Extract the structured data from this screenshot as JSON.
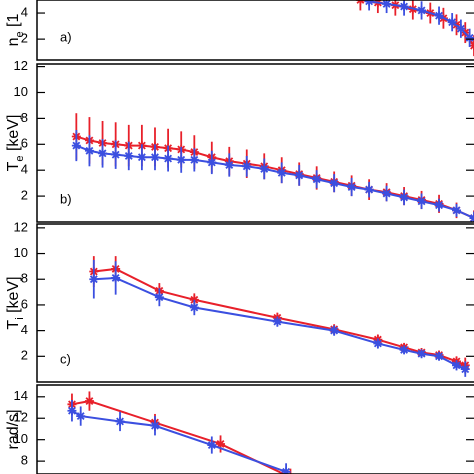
{
  "chart_data": [
    {
      "type": "errorbar",
      "panel_label": "a)",
      "ylabel": [
        "n",
        "e",
        " [1"
      ],
      "xlim": [
        0,
        1
      ],
      "ylim": [
        0.4,
        5
      ],
      "yticks": [
        2,
        4
      ],
      "series": [
        {
          "name": "red",
          "color": "#e8202a",
          "x": [
            0.74,
            0.78,
            0.82,
            0.86,
            0.9,
            0.93,
            0.96,
            0.98,
            1.0
          ],
          "values": [
            5.0,
            4.8,
            4.6,
            4.3,
            4.0,
            3.6,
            3.1,
            2.5,
            1.5
          ],
          "errors": [
            0.8,
            0.8,
            0.8,
            0.8,
            0.8,
            0.8,
            0.8,
            0.8,
            0.8
          ]
        },
        {
          "name": "blue",
          "color": "#3b4fe0",
          "x": [
            0.76,
            0.8,
            0.84,
            0.88,
            0.92,
            0.95,
            0.97,
            0.99
          ],
          "values": [
            4.9,
            4.7,
            4.5,
            4.2,
            3.8,
            3.3,
            2.8,
            2.1
          ],
          "errors": [
            0.7,
            0.7,
            0.7,
            0.7,
            0.7,
            0.7,
            0.7,
            0.7
          ]
        }
      ]
    },
    {
      "type": "errorbar",
      "panel_label": "b)",
      "ylabel": [
        "T",
        "e",
        " [keV]"
      ],
      "xlim": [
        0,
        1
      ],
      "ylim": [
        0,
        12.2
      ],
      "yticks": [
        2,
        4,
        6,
        8,
        10,
        12
      ],
      "series": [
        {
          "name": "red",
          "color": "#e8202a",
          "x": [
            0.09,
            0.12,
            0.15,
            0.18,
            0.21,
            0.24,
            0.27,
            0.3,
            0.33,
            0.36,
            0.4,
            0.44,
            0.48,
            0.52,
            0.56,
            0.6,
            0.64,
            0.68,
            0.72,
            0.76,
            0.8,
            0.84,
            0.88,
            0.92,
            0.96,
            1.0
          ],
          "values": [
            6.6,
            6.3,
            6.1,
            6.0,
            5.9,
            5.9,
            5.8,
            5.7,
            5.6,
            5.4,
            5.0,
            4.7,
            4.5,
            4.3,
            4.0,
            3.7,
            3.4,
            3.1,
            2.8,
            2.5,
            2.3,
            2.0,
            1.7,
            1.4,
            0.9,
            0.3
          ],
          "errors": [
            1.8,
            1.8,
            1.7,
            1.7,
            1.6,
            1.6,
            1.5,
            1.5,
            1.4,
            1.3,
            1.2,
            1.1,
            1.1,
            1.0,
            1.0,
            0.9,
            0.9,
            0.8,
            0.8,
            0.8,
            0.7,
            0.7,
            0.7,
            0.7,
            0.6,
            0.6
          ]
        },
        {
          "name": "blue",
          "color": "#3b4fe0",
          "x": [
            0.09,
            0.12,
            0.15,
            0.18,
            0.21,
            0.24,
            0.27,
            0.3,
            0.33,
            0.36,
            0.4,
            0.44,
            0.48,
            0.52,
            0.56,
            0.6,
            0.64,
            0.68,
            0.72,
            0.76,
            0.8,
            0.84,
            0.88,
            0.92,
            0.96,
            1.0
          ],
          "values": [
            5.9,
            5.5,
            5.3,
            5.2,
            5.1,
            5.0,
            5.0,
            4.9,
            4.8,
            4.8,
            4.6,
            4.4,
            4.3,
            4.1,
            3.8,
            3.6,
            3.3,
            3.0,
            2.7,
            2.5,
            2.2,
            1.9,
            1.6,
            1.3,
            0.9,
            0.3
          ],
          "errors": [
            1.2,
            1.2,
            1.1,
            1.1,
            1.1,
            1.0,
            1.0,
            1.0,
            1.0,
            0.9,
            0.9,
            0.9,
            0.8,
            0.8,
            0.8,
            0.8,
            0.7,
            0.7,
            0.7,
            0.6,
            0.6,
            0.6,
            0.6,
            0.5,
            0.5,
            0.5
          ]
        }
      ]
    },
    {
      "type": "errorbar",
      "panel_label": "c)",
      "ylabel": [
        "T",
        "i",
        " [keV]"
      ],
      "xlim": [
        0,
        1
      ],
      "ylim": [
        0,
        12.3
      ],
      "yticks": [
        2,
        4,
        6,
        8,
        10,
        12
      ],
      "series": [
        {
          "name": "red",
          "color": "#e8202a",
          "x": [
            0.13,
            0.18,
            0.28,
            0.36,
            0.55,
            0.68,
            0.78,
            0.84,
            0.88,
            0.92,
            0.96,
            0.98
          ],
          "values": [
            8.6,
            8.8,
            7.1,
            6.4,
            5.0,
            4.1,
            3.3,
            2.7,
            2.3,
            2.1,
            1.6,
            1.3
          ],
          "errors": [
            1.2,
            1.0,
            0.6,
            0.5,
            0.4,
            0.4,
            0.4,
            0.3,
            0.3,
            0.3,
            0.4,
            0.6
          ]
        },
        {
          "name": "blue",
          "color": "#3b4fe0",
          "x": [
            0.13,
            0.18,
            0.28,
            0.36,
            0.55,
            0.68,
            0.78,
            0.84,
            0.88,
            0.92,
            0.96,
            0.98
          ],
          "values": [
            8.0,
            8.1,
            6.6,
            5.8,
            4.7,
            4.0,
            3.0,
            2.5,
            2.2,
            2.0,
            1.3,
            1.0
          ],
          "errors": [
            1.5,
            1.3,
            0.7,
            0.6,
            0.4,
            0.4,
            0.4,
            0.3,
            0.3,
            0.3,
            0.4,
            0.6
          ]
        }
      ]
    },
    {
      "type": "errorbar",
      "ylabel": [
        "",
        "",
        "rad/s]"
      ],
      "xlim": [
        0,
        1
      ],
      "ylim": [
        6.8,
        15.1
      ],
      "yticks": [
        8,
        10,
        12,
        14
      ],
      "series": [
        {
          "name": "red",
          "color": "#e8202a",
          "x": [
            0.08,
            0.12,
            0.27,
            0.42,
            0.58
          ],
          "values": [
            13.3,
            13.6,
            11.6,
            9.6,
            6.5
          ],
          "errors": [
            1.0,
            0.9,
            0.8,
            0.8,
            0.8
          ]
        },
        {
          "name": "blue",
          "color": "#3b4fe0",
          "x": [
            0.08,
            0.1,
            0.19,
            0.27,
            0.4,
            0.57
          ],
          "values": [
            12.7,
            12.2,
            11.7,
            11.3,
            9.5,
            7.0
          ],
          "errors": [
            1.0,
            0.9,
            0.9,
            0.9,
            0.8,
            0.8
          ]
        }
      ]
    }
  ]
}
